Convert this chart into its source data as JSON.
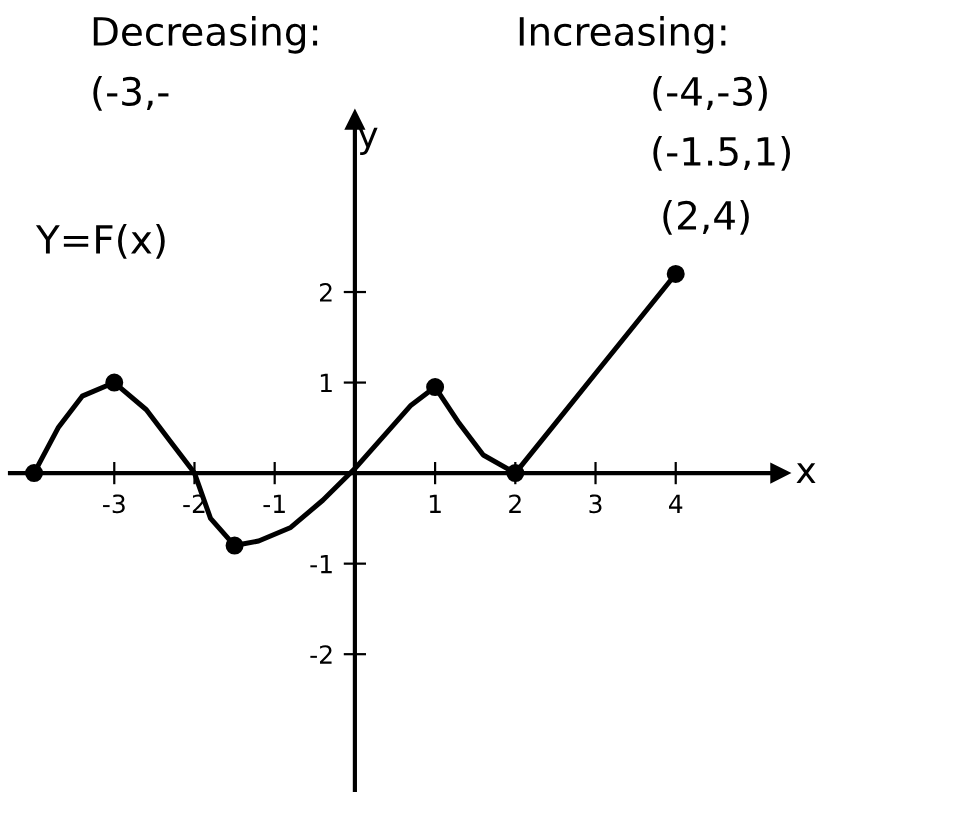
{
  "chart_data": {
    "type": "line",
    "xlabel": "x",
    "ylabel": "y",
    "xlim": [
      -4.3,
      5.3
    ],
    "ylim": [
      -3.5,
      3.9
    ],
    "xticks": [
      -3,
      -2,
      -1,
      1,
      2,
      3,
      4
    ],
    "yticks": [
      -2,
      -1,
      1,
      2
    ],
    "series": [
      {
        "color": "#000000",
        "line_style": "solid",
        "x": [
          -4,
          -3.7,
          -3.4,
          -3,
          -2.6,
          -2.3,
          -2,
          -1.8,
          -1.5,
          -1.2,
          -0.8,
          -0.4,
          0,
          0.4,
          0.7,
          1,
          1.3,
          1.6,
          2,
          2.5,
          3,
          3.5,
          4
        ],
        "values": [
          0,
          0.5,
          0.85,
          1,
          0.7,
          0.35,
          0,
          -0.5,
          -0.8,
          -0.75,
          -0.6,
          -0.3,
          0.05,
          0.45,
          0.75,
          0.95,
          0.55,
          0.2,
          0,
          0.55,
          1.1,
          1.65,
          2.2
        ]
      },
      {
        "type": "scatter",
        "color": "#000000",
        "marker": "circle",
        "x": [
          -4,
          -3,
          -1.5,
          1,
          2,
          4
        ],
        "values": [
          0,
          1,
          -0.8,
          0.95,
          0,
          2.2
        ]
      }
    ],
    "annotations": [
      "Decreasing:",
      "(-3,-",
      "Increasing:",
      "(-4,-3)",
      "(-1.5,1)",
      "(2,4)",
      "Y=F(x)"
    ]
  }
}
